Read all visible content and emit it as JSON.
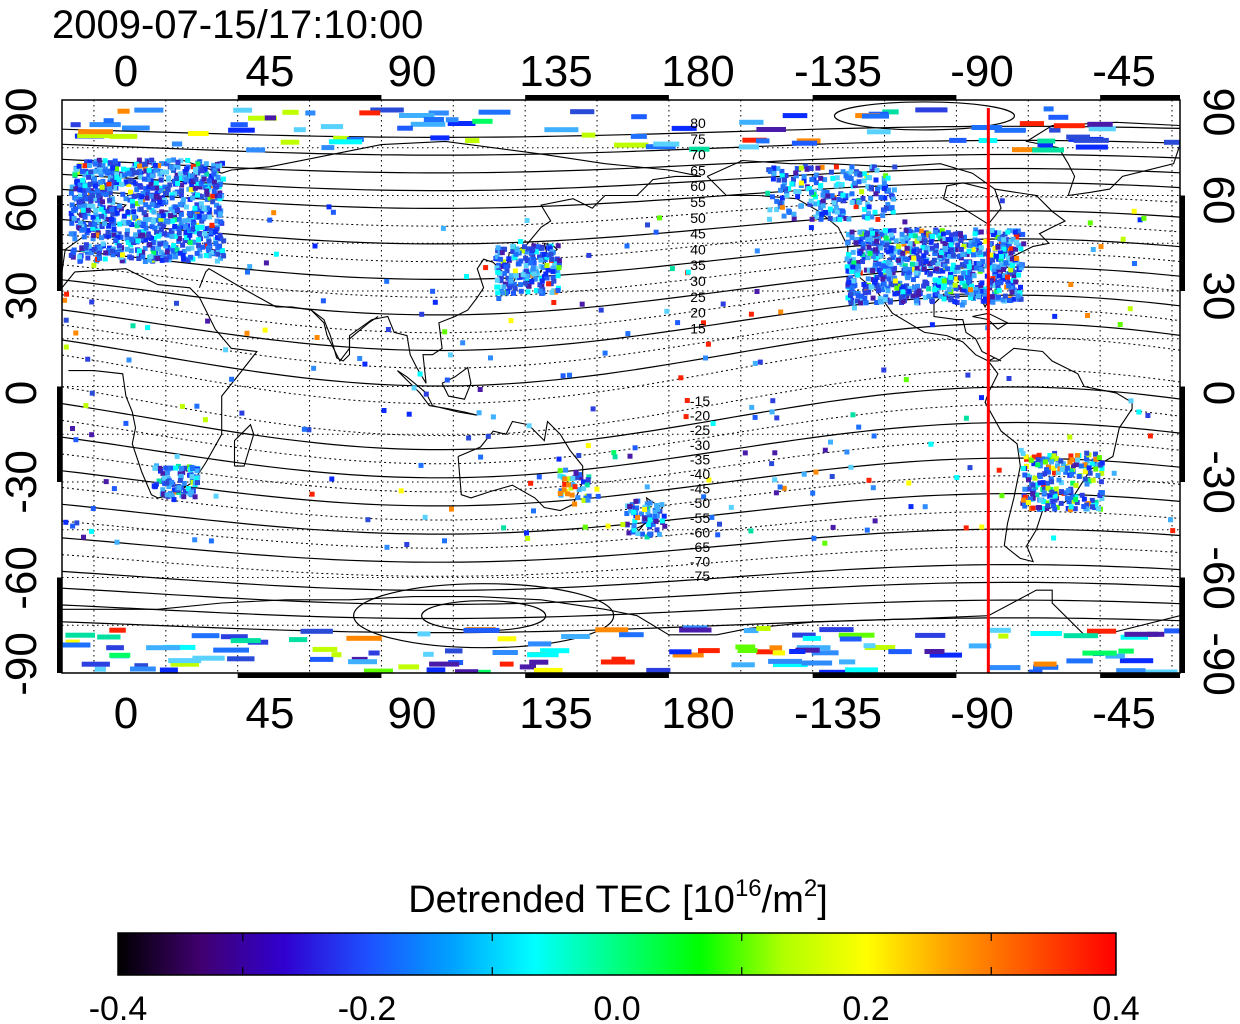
{
  "map": {
    "timestamp": "2009-07-15/17:10:00",
    "top_lon_ticks": [
      "0",
      "45",
      "90",
      "135",
      "180",
      "-135",
      "-90",
      "-45"
    ],
    "bottom_lon_ticks": [
      "0",
      "45",
      "90",
      "135",
      "180",
      "-135",
      "-90",
      "-45"
    ],
    "lon_tick_values": [
      0,
      45,
      90,
      135,
      180,
      225,
      270,
      315
    ],
    "left_lat_ticks": [
      "90",
      "60",
      "30",
      "0",
      "-30",
      "-60",
      "-90"
    ],
    "right_lat_ticks": [
      "90",
      "60",
      "30",
      "0",
      "-30",
      "-60",
      "-90"
    ],
    "lat_tick_values": [
      90,
      60,
      30,
      0,
      -30,
      -60,
      -90
    ],
    "lon_range": [
      -10,
      340
    ],
    "lat_range": [
      -90,
      90
    ],
    "grid": true,
    "projection": "equirectangular",
    "red_meridian": {
      "lon": -80,
      "color": "#ff0000"
    },
    "magnetic_contour_labels_north": [
      "80",
      "75",
      "70",
      "65",
      "60",
      "55",
      "50",
      "45",
      "40",
      "35",
      "30",
      "25",
      "20",
      "15"
    ],
    "magnetic_contour_labels_south": [
      "-15",
      "-20",
      "-25",
      "-30",
      "-35",
      "-40",
      "-45",
      "-50",
      "-55",
      "-60",
      "-65",
      "-70",
      "-75"
    ],
    "data_regions": [
      "Europe",
      "North America",
      "Japan",
      "South America",
      "South Africa",
      "Australia",
      "New Zealand",
      "Antarctica"
    ]
  },
  "colorbar": {
    "title_prefix": "Detrended TEC  [10",
    "title_sup1": "16",
    "title_mid": "/m",
    "title_sup2": "2",
    "title_suffix": "]",
    "tick_labels": [
      "-0.4",
      "-0.2",
      "0.0",
      "0.2",
      "0.4"
    ],
    "min": -0.4,
    "max": 0.4,
    "colors": [
      "#000000",
      "#400070",
      "#3000d0",
      "#1e50ff",
      "#00a0ff",
      "#00ffff",
      "#00ff80",
      "#00ff00",
      "#b0ff00",
      "#ffff00",
      "#ffa000",
      "#ff5000",
      "#ff0000"
    ]
  }
}
